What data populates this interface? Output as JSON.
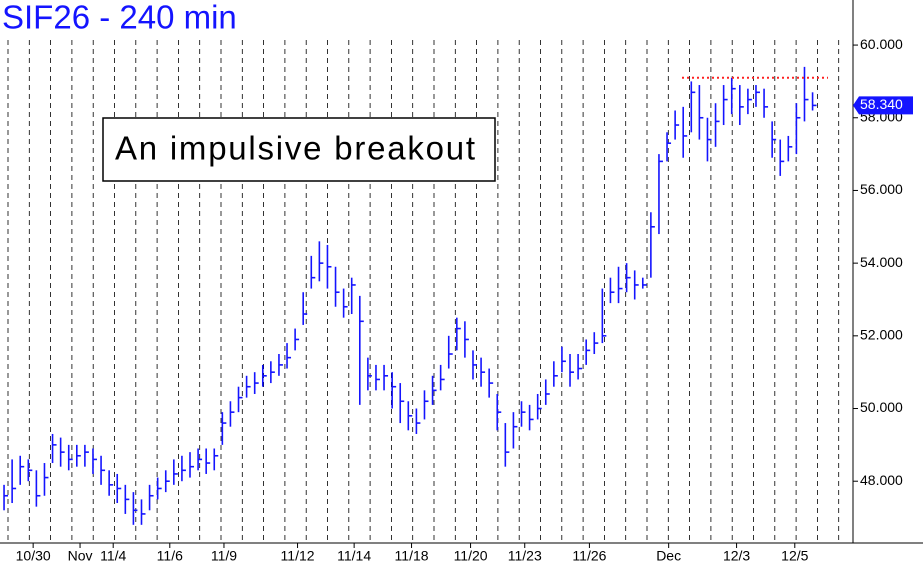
{
  "chart_data": {
    "type": "ohlc",
    "title": "SIF26 - 240 min",
    "annotation": "An impulsive breakout",
    "color": "#1414ff",
    "xlim": [
      -0.5,
      105
    ],
    "ylim": [
      46.3,
      61.24
    ],
    "xticks": [
      {
        "value": 3.6,
        "label": "10/30"
      },
      {
        "value": 9.4,
        "label": "Nov"
      },
      {
        "value": 13.5,
        "label": "11/4"
      },
      {
        "value": 20.5,
        "label": "11/6"
      },
      {
        "value": 27.2,
        "label": "11/9"
      },
      {
        "value": 36.3,
        "label": "11/12"
      },
      {
        "value": 43.3,
        "label": "11/14"
      },
      {
        "value": 50.4,
        "label": "11/18"
      },
      {
        "value": 57.7,
        "label": "11/20"
      },
      {
        "value": 64.4,
        "label": "11/23"
      },
      {
        "value": 72.4,
        "label": "11/26"
      },
      {
        "value": 82.2,
        "label": "Dec"
      },
      {
        "value": 90.6,
        "label": "12/3"
      },
      {
        "value": 97.8,
        "label": "12/5"
      }
    ],
    "yticks": [
      {
        "value": 48,
        "label": "48.000"
      },
      {
        "value": 50,
        "label": "50.000"
      },
      {
        "value": 52,
        "label": "52.000"
      },
      {
        "value": 54,
        "label": "54.000"
      },
      {
        "value": 56,
        "label": "56.000"
      },
      {
        "value": 58,
        "label": "58.000"
      },
      {
        "value": 60,
        "label": "60.000"
      }
    ],
    "hline": {
      "value": 59.1,
      "color": "#ff2020"
    },
    "last": {
      "value": 58.34,
      "label": "58.340"
    },
    "high": [
      47.9,
      48.6,
      48.7,
      48.6,
      48.3,
      48.5,
      49.3,
      49.2,
      49.0,
      49.0,
      49.0,
      48.9,
      48.7,
      48.3,
      48.2,
      47.9,
      47.7,
      47.5,
      47.9,
      48.1,
      48.3,
      48.6,
      48.7,
      48.8,
      48.9,
      48.9,
      48.9,
      49.9,
      50.2,
      50.6,
      50.9,
      51.0,
      51.2,
      51.3,
      51.5,
      51.8,
      52.2,
      53.2,
      54.2,
      54.6,
      54.5,
      53.9,
      53.3,
      53.6,
      53.1,
      51.4,
      51.2,
      51.2,
      51.0,
      50.7,
      50.2,
      50.0,
      50.5,
      50.9,
      51.2,
      52.0,
      52.5,
      52.4,
      51.6,
      51.4,
      51.1,
      50.4,
      49.6,
      49.9,
      50.2,
      50.1,
      50.4,
      50.8,
      51.3,
      51.7,
      51.5,
      51.5,
      51.9,
      52.1,
      53.3,
      53.6,
      53.9,
      54.0,
      53.8,
      53.6,
      55.4,
      57.0,
      57.6,
      58.2,
      58.3,
      59.0,
      58.9,
      58.0,
      58.4,
      58.9,
      59.1,
      58.9,
      58.8,
      58.9,
      58.8,
      57.9,
      57.4,
      57.5,
      58.4,
      59.4,
      58.7
    ],
    "low": [
      47.2,
      47.4,
      47.9,
      48.0,
      47.3,
      47.6,
      48.5,
      48.4,
      48.3,
      48.4,
      48.4,
      48.2,
      47.9,
      47.6,
      47.4,
      47.1,
      46.8,
      46.8,
      47.2,
      47.5,
      47.7,
      47.9,
      48.0,
      48.1,
      48.3,
      48.2,
      48.3,
      49.0,
      49.5,
      49.9,
      50.3,
      50.4,
      50.6,
      50.7,
      50.9,
      51.1,
      51.6,
      52.3,
      53.3,
      53.5,
      53.3,
      52.8,
      52.5,
      52.6,
      50.1,
      50.5,
      50.5,
      50.5,
      50.0,
      49.6,
      49.4,
      49.3,
      49.7,
      50.1,
      50.5,
      51.1,
      51.6,
      51.4,
      50.8,
      50.6,
      50.3,
      49.4,
      48.4,
      48.9,
      49.5,
      49.4,
      49.7,
      50.1,
      50.6,
      51.0,
      50.6,
      50.8,
      51.2,
      51.5,
      51.8,
      52.9,
      52.9,
      53.2,
      53.0,
      53.3,
      53.6,
      54.8,
      56.8,
      57.4,
      56.9,
      57.6,
      57.4,
      56.8,
      57.2,
      57.8,
      58.1,
      57.8,
      58.1,
      58.3,
      58.0,
      56.9,
      56.4,
      56.8,
      57.0,
      57.9,
      58.2
    ],
    "close": [
      47.6,
      47.8,
      48.4,
      48.3,
      47.6,
      48.1,
      49.0,
      48.8,
      48.6,
      48.7,
      48.8,
      48.6,
      48.3,
      47.9,
      47.8,
      47.5,
      47.2,
      47.1,
      47.6,
      47.8,
      48.0,
      48.2,
      48.3,
      48.4,
      48.6,
      48.5,
      48.7,
      49.6,
      49.9,
      50.3,
      50.6,
      50.7,
      50.9,
      51.0,
      51.2,
      51.4,
      51.9,
      52.6,
      53.6,
      54.0,
      53.9,
      53.2,
      52.8,
      53.4,
      52.4,
      50.9,
      50.8,
      50.9,
      50.6,
      50.2,
      49.8,
      49.6,
      50.2,
      50.5,
      50.8,
      51.5,
      52.2,
      51.9,
      51.2,
      51.0,
      50.7,
      49.9,
      48.8,
      49.5,
      49.9,
      49.7,
      50.0,
      50.4,
      50.9,
      51.3,
      51.0,
      51.1,
      51.6,
      51.8,
      52.0,
      53.2,
      53.3,
      53.6,
      53.4,
      53.4,
      55.0,
      56.8,
      57.3,
      57.8,
      57.5,
      58.7,
      58.0,
      57.4,
      57.9,
      58.5,
      58.8,
      58.3,
      58.5,
      58.7,
      58.3,
      57.4,
      56.8,
      57.2,
      58.0,
      58.5,
      58.34
    ]
  }
}
